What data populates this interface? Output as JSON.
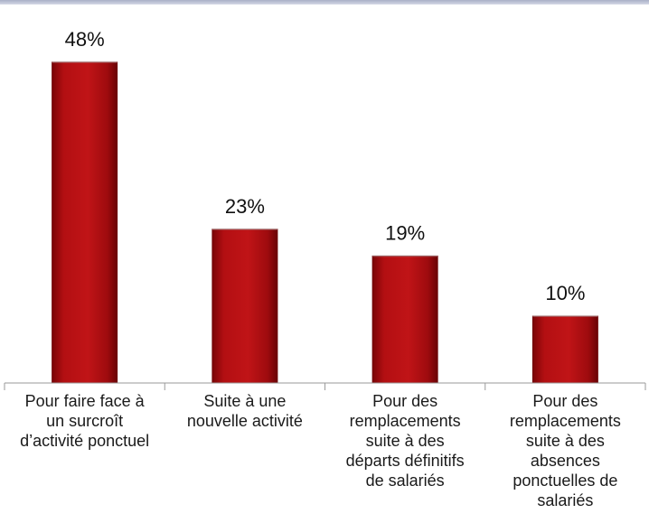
{
  "chart_data": {
    "type": "bar",
    "categories": [
      "Pour faire face à\nun surcroît\nd’activité ponctuel",
      "Suite à une\nnouvelle activité",
      "Pour des\nremplacements\nsuite à des\ndéparts définitifs\nde salariés",
      "Pour des\nremplacements\nsuite à des\nabsences\nponctuelles de\nsalariés"
    ],
    "values": [
      48,
      23,
      19,
      10
    ],
    "data_labels": [
      "48%",
      "23%",
      "19%",
      "10%"
    ],
    "ylim": [
      0,
      50
    ],
    "title": "",
    "xlabel": "",
    "ylabel": "",
    "grid": false,
    "legend": "none",
    "colors": {
      "bar_fill": "#b30f12",
      "bar_dark": "#6e0406",
      "axis": "#9a9a9a"
    }
  }
}
